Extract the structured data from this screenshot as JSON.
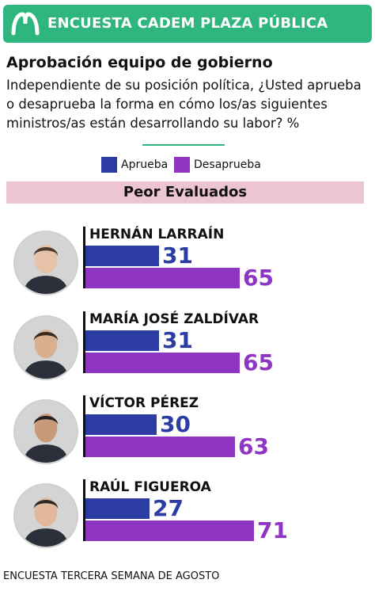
{
  "header": {
    "brand_title": "ENCUESTA CADEM PLAZA PÚBLICA",
    "logo_icon": "mega-logo-icon",
    "color": "#2fb57e"
  },
  "title": "Aprobación equipo de gobierno",
  "question": "Independiente de su posición política, ¿Usted aprueba o desaprueba la forma en cómo los/as siguientes ministros/as están desarrollando su labor? %",
  "legend": [
    {
      "label": "Aprueba",
      "color": "#2b3da3"
    },
    {
      "label": "Desaprueba",
      "color": "#8e35c4"
    }
  ],
  "section_label": "Peor Evaluados",
  "footnote": "ENCUESTA TERCERA SEMANA DE AGOSTO",
  "chart_data": {
    "type": "bar",
    "orientation": "horizontal",
    "categories": [
      "HERNÁN LARRAÍN",
      "MARÍA JOSÉ ZALDÍVAR",
      "VÍCTOR PÉREZ",
      "RAÚL FIGUEROA"
    ],
    "series": [
      {
        "name": "Aprueba",
        "values": [
          31,
          31,
          30,
          27
        ],
        "color": "#2b3da3"
      },
      {
        "name": "Desaprueba",
        "values": [
          65,
          65,
          63,
          71
        ],
        "color": "#8e35c4"
      }
    ],
    "xlim": [
      0,
      100
    ],
    "unit": "%",
    "grid": false,
    "legend_position": "top"
  }
}
